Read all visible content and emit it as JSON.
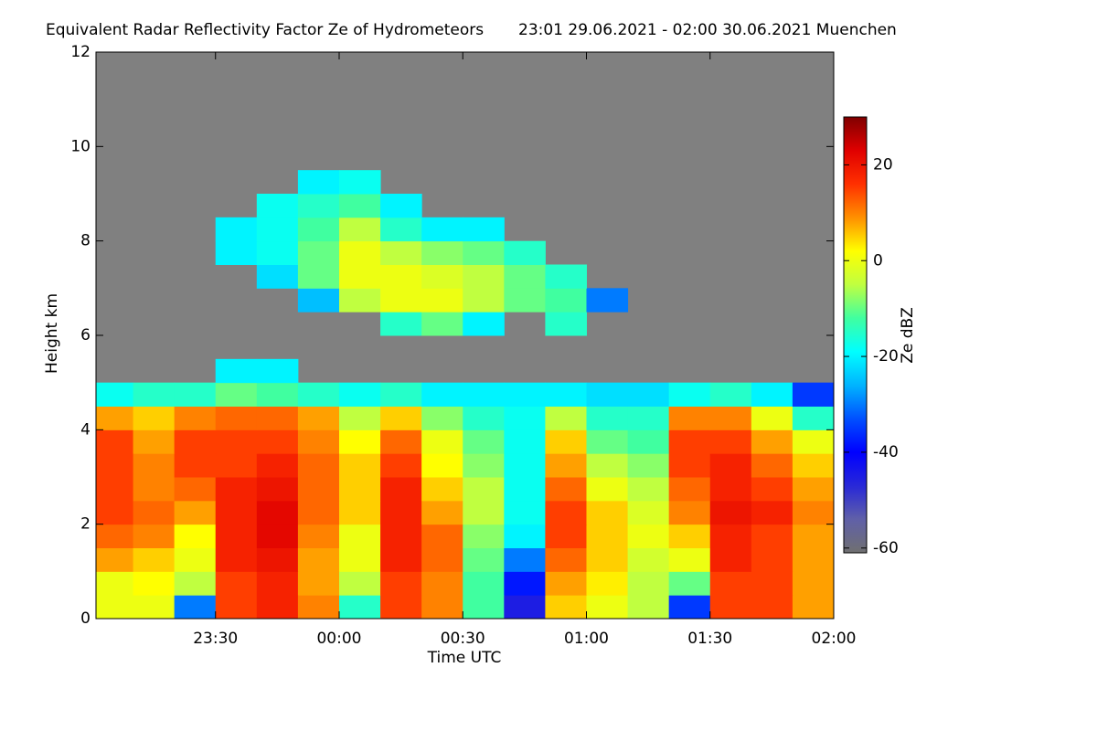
{
  "chart_data": {
    "type": "heatmap",
    "title": "Equivalent Radar Reflectivity Factor Ze of Hydrometeors",
    "subtitle": "23:01 29.06.2021 - 02:00 30.06.2021 Muenchen",
    "xlabel": "Time UTC",
    "ylabel": "Height km",
    "x": [
      23.0167,
      23.1667,
      23.3333,
      23.5,
      23.6667,
      23.8333,
      24,
      24.1667,
      24.3333,
      24.5,
      24.6667,
      24.8333,
      25,
      25.1667,
      25.3333,
      25.5,
      25.6667,
      25.8333,
      26
    ],
    "y": [
      0,
      0.5,
      1,
      1.5,
      2,
      2.5,
      3,
      3.5,
      4,
      4.5,
      5,
      5.5,
      6,
      6.5,
      7,
      7.5,
      8,
      8.5,
      9,
      9.5,
      10,
      10.5,
      11,
      11.5,
      12
    ],
    "z": [
      [
        0,
        0,
        -30,
        15,
        18,
        10,
        -15,
        15,
        10,
        -12,
        -45,
        5,
        0,
        -5,
        -35,
        15,
        15,
        8
      ],
      [
        0,
        2,
        -5,
        15,
        18,
        8,
        -5,
        15,
        10,
        -12,
        -38,
        8,
        3,
        -5,
        -10,
        15,
        15,
        8
      ],
      [
        8,
        5,
        0,
        18,
        20,
        8,
        0,
        18,
        12,
        -10,
        -30,
        12,
        5,
        -3,
        0,
        18,
        15,
        8
      ],
      [
        12,
        10,
        2,
        18,
        22,
        10,
        0,
        18,
        12,
        -8,
        -20,
        15,
        5,
        0,
        5,
        18,
        15,
        8
      ],
      [
        15,
        12,
        8,
        18,
        22,
        12,
        5,
        18,
        8,
        -5,
        -18,
        15,
        5,
        -2,
        10,
        20,
        18,
        10
      ],
      [
        15,
        10,
        12,
        18,
        20,
        12,
        5,
        18,
        5,
        -5,
        -18,
        12,
        0,
        -5,
        12,
        18,
        15,
        8
      ],
      [
        15,
        10,
        15,
        15,
        18,
        12,
        5,
        15,
        2,
        -8,
        -18,
        8,
        -5,
        -8,
        15,
        18,
        12,
        5
      ],
      [
        15,
        8,
        15,
        15,
        15,
        10,
        2,
        12,
        0,
        -10,
        -18,
        5,
        -10,
        -12,
        15,
        15,
        8,
        0
      ],
      [
        8,
        5,
        10,
        12,
        12,
        8,
        -5,
        5,
        -8,
        -15,
        -18,
        -5,
        -15,
        -15,
        10,
        10,
        0,
        -15
      ],
      [
        -18,
        -15,
        -15,
        -10,
        -12,
        -15,
        -18,
        -15,
        -20,
        -20,
        -20,
        -20,
        -22,
        -22,
        -18,
        -15,
        -20,
        -35
      ],
      [
        null,
        null,
        null,
        -20,
        -20,
        null,
        null,
        null,
        null,
        null,
        null,
        null,
        null,
        null,
        null,
        null,
        null,
        null
      ],
      [
        null,
        null,
        null,
        null,
        null,
        null,
        null,
        null,
        null,
        null,
        null,
        null,
        null,
        null,
        null,
        null,
        null,
        null
      ],
      [
        null,
        null,
        null,
        null,
        null,
        null,
        null,
        -15,
        -10,
        -20,
        null,
        -15,
        null,
        null,
        null,
        null,
        null,
        null
      ],
      [
        null,
        null,
        null,
        null,
        null,
        -25,
        -5,
        0,
        0,
        -5,
        -10,
        -12,
        -30,
        null,
        null,
        null,
        null,
        null
      ],
      [
        null,
        null,
        null,
        null,
        -22,
        -10,
        0,
        0,
        -2,
        -5,
        -10,
        -15,
        null,
        null,
        null,
        null,
        null,
        null
      ],
      [
        null,
        null,
        null,
        -20,
        -18,
        -10,
        0,
        -5,
        -8,
        -10,
        -15,
        null,
        null,
        null,
        null,
        null,
        null,
        null
      ],
      [
        null,
        null,
        null,
        -20,
        -18,
        -12,
        -5,
        -15,
        -20,
        -20,
        null,
        null,
        null,
        null,
        null,
        null,
        null,
        null
      ],
      [
        null,
        null,
        null,
        null,
        -18,
        -15,
        -12,
        -20,
        null,
        null,
        null,
        null,
        null,
        null,
        null,
        null,
        null,
        null
      ],
      [
        null,
        null,
        null,
        null,
        null,
        -20,
        -18,
        null,
        null,
        null,
        null,
        null,
        null,
        null,
        null,
        null,
        null,
        null
      ],
      [
        null,
        null,
        null,
        null,
        null,
        null,
        null,
        null,
        null,
        null,
        null,
        null,
        null,
        null,
        null,
        null,
        null,
        null
      ],
      [
        null,
        null,
        null,
        null,
        null,
        null,
        null,
        null,
        null,
        null,
        null,
        null,
        null,
        null,
        null,
        null,
        null,
        null
      ],
      [
        null,
        null,
        null,
        null,
        null,
        null,
        null,
        null,
        null,
        null,
        null,
        null,
        null,
        null,
        null,
        null,
        null,
        null
      ],
      [
        null,
        null,
        null,
        null,
        null,
        null,
        null,
        null,
        null,
        null,
        null,
        null,
        null,
        null,
        null,
        null,
        null,
        null
      ],
      [
        null,
        null,
        null,
        null,
        null,
        null,
        null,
        null,
        null,
        null,
        null,
        null,
        null,
        null,
        null,
        null,
        null,
        null
      ]
    ],
    "xlim": [
      23.0167,
      26
    ],
    "xticks": [
      {
        "value": 23.5,
        "label": "23:30"
      },
      {
        "value": 24,
        "label": "00:00"
      },
      {
        "value": 24.5,
        "label": "00:30"
      },
      {
        "value": 25,
        "label": "01:00"
      },
      {
        "value": 25.5,
        "label": "01:30"
      },
      {
        "value": 26,
        "label": "02:00"
      }
    ],
    "ylim": [
      0,
      12
    ],
    "yticks": [
      0,
      2,
      4,
      6,
      8,
      10,
      12
    ],
    "missing_color": "#808080",
    "colorbar": {
      "label": "Ze dBZ",
      "lim": [
        -61,
        30
      ],
      "ticks": [
        -60,
        -40,
        -20,
        0,
        20
      ],
      "colors": [
        "#707070",
        "#6060a8",
        "#2828d8",
        "#0000ff",
        "#0050ff",
        "#00b4ff",
        "#00ffff",
        "#40ffa0",
        "#c0ff40",
        "#ffff00",
        "#ff9000",
        "#ff3000",
        "#e00000",
        "#800000"
      ]
    }
  }
}
